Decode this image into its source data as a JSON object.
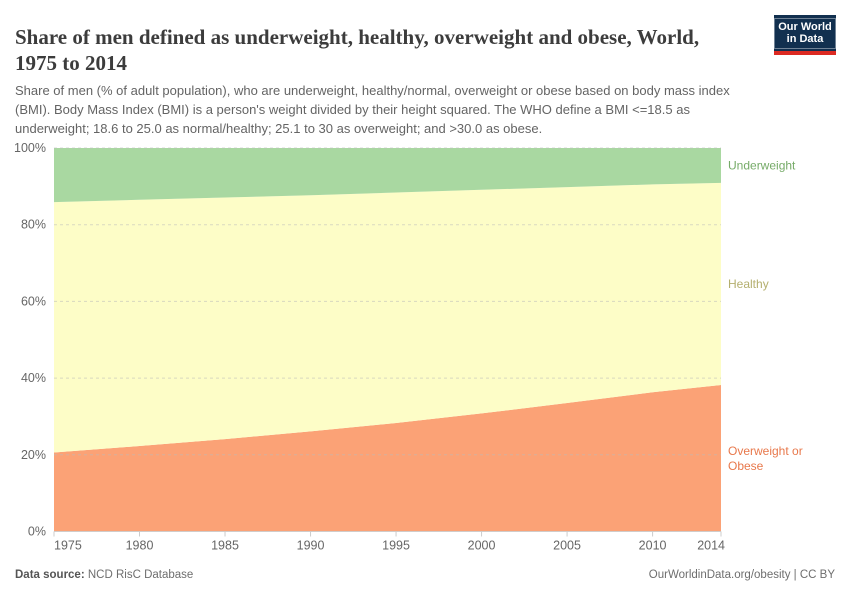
{
  "header": {
    "title": "Share of men defined as underweight, healthy, overweight and obese, World, 1975 to 2014",
    "subtitle": "Share of men (% of adult population), who are underweight, healthy/normal, overweight or obese based on body mass index (BMI). Body Mass Index (BMI) is a person's weight divided by their height squared. The WHO define a BMI <=18.5 as underweight; 18.6 to 25.0 as normal/healthy; 25.1 to 30 as overweight; and >30.0 as obese.",
    "logo": {
      "line1": "Our World",
      "line2": "in Data",
      "bg_color": "#12304f",
      "bar_color": "#dc2a22"
    }
  },
  "footer": {
    "source_label": "Data source:",
    "source_value": "NCD RisC Database",
    "credit": "OurWorldinData.org/obesity | CC BY"
  },
  "chart_data": {
    "type": "area",
    "stacked": true,
    "title": "Share of men defined as underweight, healthy, overweight and obese, World, 1975 to 2014",
    "x": [
      1975,
      1980,
      1985,
      1990,
      1995,
      2000,
      2005,
      2010,
      2014
    ],
    "xlim": [
      1975,
      2014
    ],
    "ylim": [
      0,
      100
    ],
    "x_ticks": [
      "1975",
      "1980",
      "1985",
      "1990",
      "1995",
      "2000",
      "2005",
      "2010",
      "2014"
    ],
    "y_ticks": [
      0,
      20,
      40,
      60,
      80,
      100
    ],
    "y_tick_suffix": "%",
    "grid": true,
    "legend_position": "right-edge-labels",
    "axis_label_color": "#666666",
    "gridline_color": "#bbbbbb",
    "series": [
      {
        "name": "Overweight or Obese",
        "label_lines": [
          "Overweight or",
          "Obese"
        ],
        "fill": "#fba276",
        "label_color": "#e8784b",
        "values": [
          20.6,
          22.3,
          24.1,
          26.1,
          28.3,
          30.8,
          33.5,
          36.3,
          38.2
        ]
      },
      {
        "name": "Healthy",
        "label_lines": [
          "Healthy"
        ],
        "fill": "#fdfdc7",
        "label_color": "#b4af6e",
        "values": [
          65.3,
          64.2,
          63.0,
          61.6,
          60.1,
          58.3,
          56.3,
          54.2,
          52.7
        ]
      },
      {
        "name": "Underweight",
        "label_lines": [
          "Underweight"
        ],
        "fill": "#a9d8a1",
        "label_color": "#76ab68",
        "values": [
          14.1,
          13.5,
          12.9,
          12.3,
          11.6,
          10.9,
          10.2,
          9.5,
          9.1
        ]
      }
    ]
  }
}
